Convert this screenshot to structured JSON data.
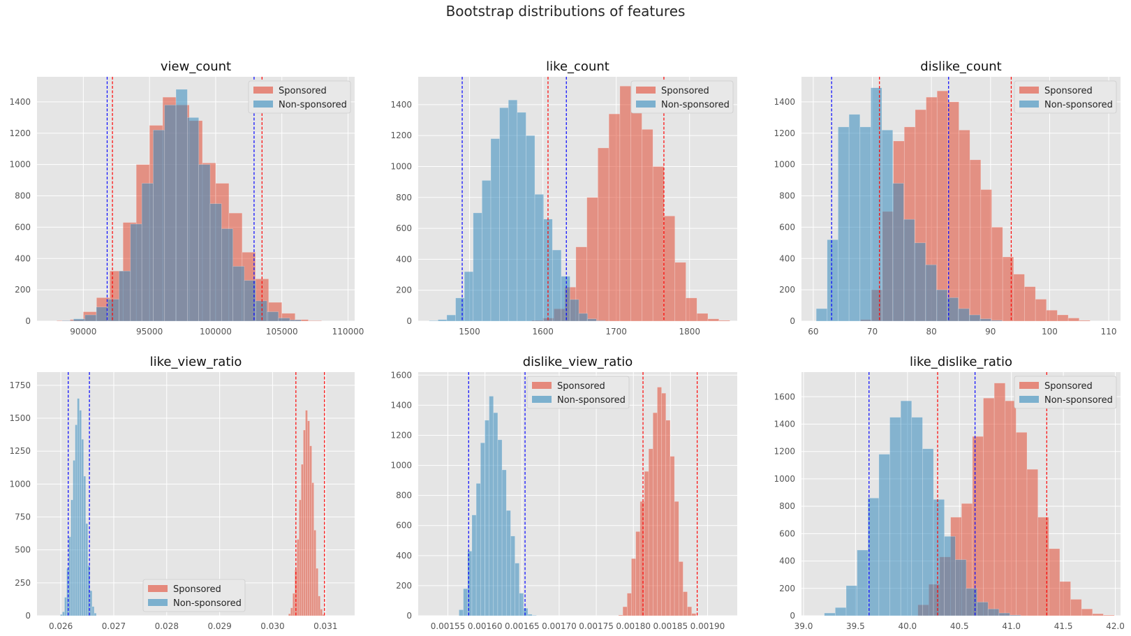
{
  "figure": {
    "title": "Bootstrap distributions of features"
  },
  "colors": {
    "sponsored": "#E24A33",
    "non_sponsored": "#348ABD",
    "ci_sponsored": "#ff0000",
    "ci_non_sponsored": "#0000ff",
    "panel_bg": "#E5E5E5",
    "grid": "#ffffff",
    "tick_text": "#555555"
  },
  "chart_data": [
    {
      "type": "bar",
      "title": "view_count",
      "xlim": [
        86500,
        110500
      ],
      "ylim": [
        0,
        1560
      ],
      "xticks": [
        90000,
        95000,
        100000,
        105000,
        110000
      ],
      "xtick_labels": [
        "90000",
        "95000",
        "100000",
        "105000",
        "110000"
      ],
      "yticks": [
        0,
        200,
        400,
        600,
        800,
        1000,
        1200,
        1400
      ],
      "legend": "upper-right",
      "series": [
        {
          "name": "Sponsored",
          "x0": 88000,
          "width": 1000,
          "values": [
            3,
            10,
            60,
            150,
            320,
            630,
            1000,
            1250,
            1430,
            1380,
            1280,
            1010,
            880,
            690,
            440,
            270,
            120,
            50,
            10,
            3
          ]
        },
        {
          "name": "Non-sponsored",
          "x0": 88400,
          "width": 860,
          "values": [
            3,
            15,
            40,
            90,
            140,
            320,
            620,
            880,
            1220,
            1380,
            1480,
            1300,
            1000,
            750,
            590,
            350,
            260,
            130,
            60,
            20,
            8
          ]
        }
      ],
      "ci_lines": [
        {
          "name": "Sponsored",
          "x": [
            92200,
            103500
          ]
        },
        {
          "name": "Non-sponsored",
          "x": [
            91800,
            102900
          ]
        }
      ]
    },
    {
      "type": "bar",
      "title": "like_count",
      "xlim": [
        1430,
        1865
      ],
      "ylim": [
        0,
        1580
      ],
      "xticks": [
        1500,
        1600,
        1700,
        1800
      ],
      "xtick_labels": [
        "1500",
        "1600",
        "1700",
        "1800"
      ],
      "yticks": [
        0,
        200,
        400,
        600,
        800,
        1000,
        1200,
        1400
      ],
      "legend": "upper-right",
      "series": [
        {
          "name": "Sponsored",
          "x0": 1585,
          "width": 15,
          "values": [
            5,
            20,
            80,
            220,
            480,
            800,
            1120,
            1340,
            1520,
            1400,
            1240,
            1000,
            680,
            380,
            150,
            50,
            15,
            5
          ]
        },
        {
          "name": "Non-sponsored",
          "x0": 1445,
          "width": 12,
          "values": [
            3,
            10,
            40,
            150,
            320,
            700,
            910,
            1180,
            1380,
            1430,
            1350,
            1200,
            820,
            660,
            460,
            290,
            140,
            50,
            15,
            3
          ]
        }
      ],
      "ci_lines": [
        {
          "name": "Sponsored",
          "x": [
            1607,
            1765
          ]
        },
        {
          "name": "Non-sponsored",
          "x": [
            1490,
            1632
          ]
        }
      ]
    },
    {
      "type": "bar",
      "title": "dislike_count",
      "xlim": [
        58,
        112
      ],
      "ylim": [
        0,
        1560
      ],
      "xticks": [
        60,
        70,
        80,
        90,
        100,
        110
      ],
      "xtick_labels": [
        "60",
        "70",
        "80",
        "90",
        "100",
        "110"
      ],
      "yticks": [
        0,
        200,
        400,
        600,
        800,
        1000,
        1200,
        1400
      ],
      "legend": "upper-right",
      "series": [
        {
          "name": "Sponsored",
          "x0": 68,
          "width": 1.85,
          "values": [
            10,
            200,
            700,
            1150,
            1240,
            1350,
            1430,
            1470,
            1400,
            1220,
            1030,
            840,
            600,
            410,
            300,
            220,
            140,
            70,
            40,
            20,
            5
          ]
        },
        {
          "name": "Non-sponsored",
          "x0": 60.5,
          "width": 1.85,
          "values": [
            80,
            520,
            1240,
            1320,
            1240,
            1490,
            1220,
            880,
            650,
            500,
            360,
            200,
            150,
            80,
            40,
            15,
            5
          ]
        }
      ],
      "ci_lines": [
        {
          "name": "Sponsored",
          "x": [
            71.2,
            93.5
          ]
        },
        {
          "name": "Non-sponsored",
          "x": [
            63.1,
            82.9
          ]
        }
      ]
    },
    {
      "type": "bar",
      "title": "like_view_ratio",
      "xlim": [
        0.02555,
        0.03155
      ],
      "ylim": [
        0,
        1850
      ],
      "xticks": [
        0.026,
        0.027,
        0.028,
        0.029,
        0.03,
        0.031
      ],
      "xtick_labels": [
        "0.026",
        "0.027",
        "0.028",
        "0.029",
        "0.030",
        "0.031"
      ],
      "yticks": [
        0,
        250,
        500,
        750,
        1000,
        1250,
        1500,
        1750
      ],
      "legend": "lower-center",
      "series": [
        {
          "name": "Sponsored",
          "x0": 0.0303,
          "width": 4e-05,
          "values": [
            15,
            60,
            170,
            350,
            580,
            880,
            1150,
            1410,
            1560,
            1480,
            1290,
            1010,
            650,
            360,
            150,
            50,
            10
          ]
        },
        {
          "name": "Non-sponsored",
          "x0": 0.02599,
          "width": 4e-05,
          "values": [
            10,
            30,
            140,
            360,
            600,
            880,
            1180,
            1450,
            1650,
            1560,
            1340,
            1060,
            700,
            380,
            190,
            70,
            20
          ]
        }
      ],
      "ci_lines": [
        {
          "name": "Sponsored",
          "x": [
            0.03044,
            0.03098
          ]
        },
        {
          "name": "Non-sponsored",
          "x": [
            0.02614,
            0.02654
          ]
        }
      ]
    },
    {
      "type": "bar",
      "title": "dislike_view_ratio",
      "xlim": [
        0.00151,
        0.00194
      ],
      "ylim": [
        0,
        1620
      ],
      "xticks": [
        0.00155,
        0.0016,
        0.00165,
        0.0017,
        0.00175,
        0.0018,
        0.00185,
        0.0019
      ],
      "xtick_labels": [
        "0.00155",
        "0.00160",
        "0.00165",
        "0.00170",
        "0.00175",
        "0.00180",
        "0.00185",
        "0.00190"
      ],
      "yticks": [
        0,
        200,
        400,
        600,
        800,
        1000,
        1200,
        1400,
        1600
      ],
      "legend": "upper-left",
      "series": [
        {
          "name": "Sponsored",
          "x0": 0.00178,
          "width": 5.8e-06,
          "values": [
            5,
            60,
            150,
            380,
            560,
            760,
            960,
            1110,
            1350,
            1520,
            1480,
            1300,
            1060,
            760,
            360,
            160,
            60,
            15
          ]
        },
        {
          "name": "Non-sponsored",
          "x0": 0.001565,
          "width": 5.8e-06,
          "values": [
            40,
            180,
            430,
            670,
            880,
            1150,
            1300,
            1460,
            1350,
            1170,
            970,
            700,
            530,
            350,
            150,
            50,
            10,
            3
          ]
        }
      ],
      "ci_lines": [
        {
          "name": "Sponsored",
          "x": [
            0.001813,
            0.001886
          ]
        },
        {
          "name": "Non-sponsored",
          "x": [
            0.001578,
            0.001654
          ]
        }
      ]
    },
    {
      "type": "bar",
      "title": "like_dislike_ratio",
      "xlim": [
        38.98,
        42.05
      ],
      "ylim": [
        0,
        1780
      ],
      "xticks": [
        39.0,
        39.5,
        40.0,
        40.5,
        41.0,
        41.5,
        42.0
      ],
      "xtick_labels": [
        "39.0",
        "39.5",
        "40.0",
        "40.5",
        "41.0",
        "41.5",
        "42.0"
      ],
      "yticks": [
        0,
        200,
        400,
        600,
        800,
        1000,
        1200,
        1400,
        1600
      ],
      "legend": "upper-right",
      "series": [
        {
          "name": "Sponsored",
          "x0": 40.1,
          "width": 0.105,
          "values": [
            80,
            230,
            430,
            720,
            820,
            1310,
            1590,
            1700,
            1570,
            1340,
            1070,
            720,
            490,
            250,
            120,
            50,
            15,
            5
          ]
        },
        {
          "name": "Non-sponsored",
          "x0": 39.2,
          "width": 0.105,
          "values": [
            20,
            60,
            220,
            480,
            860,
            1180,
            1450,
            1570,
            1450,
            1220,
            850,
            580,
            410,
            200,
            100,
            50,
            20,
            5
          ]
        }
      ],
      "ci_lines": [
        {
          "name": "Sponsored",
          "x": [
            40.29,
            41.34
          ]
        },
        {
          "name": "Non-sponsored",
          "x": [
            39.63,
            40.65
          ]
        }
      ]
    }
  ]
}
